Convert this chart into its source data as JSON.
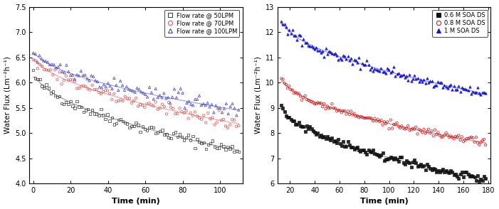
{
  "left": {
    "ylabel": "Water Flux (Lm⁻²h⁻¹)",
    "xlabel": "Time (min)",
    "xlim": [
      -2,
      112
    ],
    "ylim": [
      4.0,
      7.5
    ],
    "yticks": [
      4.0,
      4.5,
      5.0,
      5.5,
      6.0,
      6.5,
      7.0,
      7.5
    ],
    "xticks": [
      0,
      20,
      40,
      60,
      80,
      100
    ],
    "series": [
      {
        "label": "Flow rate @ 50LPM",
        "color": "#333333",
        "marker": "s",
        "filled": false,
        "trend_start": 6.22,
        "trend_end": 4.65,
        "k": 0.025,
        "scatter_noise": 0.055,
        "t_start": 0,
        "t_end": 110,
        "n_points": 95
      },
      {
        "label": "Flow rate @ 70LPM",
        "color": "#dd4444",
        "marker": "o",
        "filled": false,
        "trend_start": 6.55,
        "trend_end": 5.18,
        "k": 0.022,
        "scatter_noise": 0.06,
        "t_start": 0,
        "t_end": 110,
        "n_points": 95
      },
      {
        "label": "Flow rate @ 100LPM",
        "color": "#3333bb",
        "marker": "^",
        "filled": false,
        "trend_start": 6.65,
        "trend_end": 5.45,
        "k": 0.018,
        "scatter_noise": 0.07,
        "t_start": 0,
        "t_end": 110,
        "n_points": 100
      }
    ]
  },
  "right": {
    "ylabel": "Water Flux (Lm⁻²h⁻¹)",
    "xlabel": "Time (min)",
    "xlim": [
      10,
      182
    ],
    "ylim": [
      6.0,
      13.0
    ],
    "yticks": [
      6,
      7,
      8,
      9,
      10,
      11,
      12,
      13
    ],
    "xticks": [
      20,
      40,
      60,
      80,
      100,
      120,
      140,
      160,
      180
    ],
    "series": [
      {
        "label": "0.6 M SOA DS",
        "color": "#111111",
        "marker": "s",
        "filled": true,
        "trend_start": 9.1,
        "trend_end": 6.15,
        "k": 0.016,
        "scatter_noise": 0.07,
        "t_start": 13,
        "t_end": 178,
        "n_points": 130
      },
      {
        "label": "0.8 M SOA DS",
        "color": "#cc0000",
        "marker": "o",
        "filled": false,
        "trend_start": 10.2,
        "trend_end": 7.6,
        "k": 0.014,
        "scatter_noise": 0.08,
        "t_start": 13,
        "t_end": 178,
        "n_points": 130
      },
      {
        "label": "1 M SOA DS",
        "color": "#1111cc",
        "marker": "^",
        "filled": true,
        "trend_start": 12.5,
        "trend_end": 9.55,
        "k": 0.012,
        "scatter_noise": 0.09,
        "t_start": 13,
        "t_end": 178,
        "n_points": 130
      }
    ]
  }
}
